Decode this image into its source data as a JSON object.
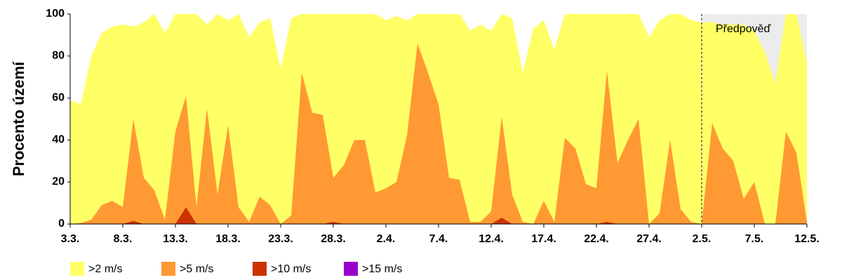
{
  "chart_data": {
    "type": "area",
    "y_label": "Procento území",
    "annotation": "Předpověď",
    "forecast_from": "2.5.",
    "categories": [
      "3.3.",
      null,
      null,
      null,
      null,
      "8.3.",
      null,
      null,
      null,
      null,
      "13.3.",
      null,
      null,
      null,
      null,
      "18.3.",
      null,
      null,
      null,
      null,
      "23.3.",
      null,
      null,
      null,
      null,
      "28.3.",
      null,
      null,
      null,
      null,
      "2.4.",
      null,
      null,
      null,
      null,
      "7.4.",
      null,
      null,
      null,
      null,
      "12.4.",
      null,
      null,
      null,
      null,
      "17.4.",
      null,
      null,
      null,
      null,
      "22.4.",
      null,
      null,
      null,
      null,
      "27.4.",
      null,
      null,
      null,
      null,
      "2.5.",
      null,
      null,
      null,
      null,
      "7.5.",
      null,
      null,
      null,
      null,
      "12.5."
    ],
    "series": [
      {
        "name": ">2 m/s",
        "color": "#ffff66",
        "values": [
          59,
          57,
          80,
          91,
          94,
          95,
          94,
          96,
          100,
          91,
          100,
          100,
          100,
          95,
          100,
          97,
          100,
          89,
          96,
          98,
          74,
          98,
          100,
          100,
          100,
          100,
          100,
          100,
          100,
          100,
          97,
          99,
          97,
          100,
          100,
          100,
          100,
          100,
          92,
          95,
          92,
          100,
          98,
          72,
          93,
          97,
          83,
          100,
          100,
          100,
          100,
          100,
          100,
          100,
          100,
          89,
          97,
          100,
          100,
          97,
          96,
          96,
          95,
          95,
          95,
          92,
          82,
          67,
          100,
          100,
          77
        ]
      },
      {
        "name": ">5 m/s",
        "color": "#ff9933",
        "values": [
          0,
          0.5,
          2,
          9,
          11,
          8,
          50,
          22,
          16,
          2,
          44,
          61,
          8,
          55,
          14,
          47,
          8,
          1,
          13,
          9,
          0,
          4,
          72,
          53,
          52,
          22,
          28,
          40,
          40,
          15,
          17,
          20,
          42,
          86,
          72,
          57,
          22,
          21,
          1,
          1,
          6,
          51,
          14,
          1,
          0,
          11,
          1,
          41,
          36,
          19,
          17,
          73,
          29,
          40,
          50,
          0,
          5,
          40,
          7,
          1,
          0,
          48,
          36,
          30,
          12,
          20,
          0,
          0,
          44,
          34,
          1
        ]
      },
      {
        "name": ">10 m/s",
        "color": "#cc3300",
        "values": [
          0,
          0,
          0,
          0,
          0,
          0,
          1.5,
          0,
          0,
          0,
          0,
          8,
          0,
          0,
          0,
          0,
          0,
          0,
          0,
          0,
          0,
          0,
          0,
          0,
          0,
          1,
          0,
          0,
          0,
          0,
          0,
          0,
          0,
          0,
          0,
          0,
          0,
          0,
          0,
          0,
          0,
          3,
          0,
          0,
          0,
          0,
          0,
          0,
          0,
          0,
          0,
          1,
          0,
          0,
          0,
          0,
          0,
          0,
          0,
          0,
          0,
          0,
          0,
          0,
          0,
          0,
          0,
          0,
          0,
          0,
          0
        ]
      },
      {
        "name": ">15 m/s",
        "color": "#9900cc",
        "values": [
          0,
          0,
          0,
          0,
          0,
          0,
          0,
          0,
          0,
          0,
          0,
          0,
          0,
          0,
          0,
          0,
          0,
          0,
          0,
          0,
          0,
          0,
          0,
          0,
          0,
          0,
          0,
          0,
          0,
          0,
          0,
          0,
          0,
          0,
          0,
          0,
          0,
          0,
          0,
          0,
          0,
          0,
          0,
          0,
          0,
          0,
          0,
          0,
          0,
          0,
          0,
          0,
          0,
          0,
          0,
          0,
          0,
          0,
          0,
          0,
          0,
          0,
          0,
          0,
          0,
          0,
          0,
          0,
          0,
          0,
          0
        ]
      }
    ],
    "ylim": [
      0,
      100
    ],
    "yticks": [
      0,
      20,
      40,
      60,
      80,
      100
    ]
  }
}
